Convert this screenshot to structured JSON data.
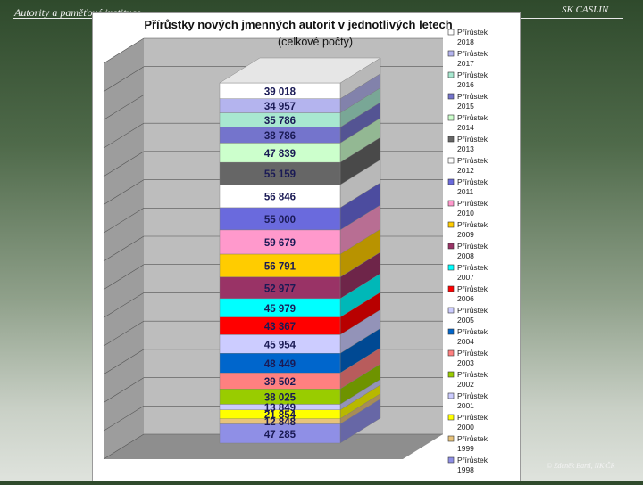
{
  "slide": {
    "header_left": "Autority a paměťové instituce",
    "header_right": "SK CASLIN",
    "footer_credit": "© Zdeněk Bartl, NK ČR"
  },
  "colors": {
    "wall": "#bdbdbd",
    "floor": "#8e8e8e"
  },
  "chart_data": {
    "type": "bar",
    "subtype": "stacked-3d-column",
    "title": "Přírůstky nových jmenných autorit v jednotlivých letech",
    "subtitle": "(celkové počty)",
    "series": [
      {
        "name": "Přírůstek 1998",
        "year": "1998",
        "value": 47285,
        "label": "47 285",
        "color": "#8f8fe6"
      },
      {
        "name": "Přírůstek 1999",
        "year": "1999",
        "value": 12848,
        "label": "12 848",
        "color": "#e8c37a"
      },
      {
        "name": "Přírůstek 2000",
        "year": "2000",
        "value": 21854,
        "label": "21 854",
        "color": "#ffff00"
      },
      {
        "name": "Přírůstek 2001",
        "year": "2001",
        "value": 13849,
        "label": "13 849",
        "color": "#ccccff"
      },
      {
        "name": "Přírůstek 2002",
        "year": "2002",
        "value": 38025,
        "label": "38 025",
        "color": "#99cc00"
      },
      {
        "name": "Přírůstek 2003",
        "year": "2003",
        "value": 39502,
        "label": "39 502",
        "color": "#ff8080"
      },
      {
        "name": "Přírůstek 2004",
        "year": "2004",
        "value": 48449,
        "label": "48 449",
        "color": "#0066cc"
      },
      {
        "name": "Přírůstek 2005",
        "year": "2005",
        "value": 45954,
        "label": "45 954",
        "color": "#ccccff"
      },
      {
        "name": "Přírůstek 2006",
        "year": "2006",
        "value": 43367,
        "label": "43 367",
        "color": "#ff0000"
      },
      {
        "name": "Přírůstek 2007",
        "year": "2007",
        "value": 45979,
        "label": "45 979",
        "color": "#00ffff"
      },
      {
        "name": "Přírůstek 2008",
        "year": "2008",
        "value": 52977,
        "label": "52 977",
        "color": "#993366"
      },
      {
        "name": "Přírůstek 2009",
        "year": "2009",
        "value": 56791,
        "label": "56 791",
        "color": "#ffcc00"
      },
      {
        "name": "Přírůstek 2010",
        "year": "2010",
        "value": 59679,
        "label": "59 679",
        "color": "#ff99cc"
      },
      {
        "name": "Přírůstek 2011",
        "year": "2011",
        "value": 55000,
        "label": "55 000",
        "color": "#6a6add"
      },
      {
        "name": "Přírůstek 2012",
        "year": "2012",
        "value": 56846,
        "label": "56 846",
        "color": "#ffffff"
      },
      {
        "name": "Přírůstek 2013",
        "year": "2013",
        "value": 55159,
        "label": "55 159",
        "color": "#666666"
      },
      {
        "name": "Přírůstek 2014",
        "year": "2014",
        "value": 47839,
        "label": "47 839",
        "color": "#ccffcc"
      },
      {
        "name": "Přírůstek 2015",
        "year": "2015",
        "value": 38786,
        "label": "38 786",
        "color": "#7474cc"
      },
      {
        "name": "Přírůstek 2016",
        "year": "2016",
        "value": 35786,
        "label": "35 786",
        "color": "#a8e8d0"
      },
      {
        "name": "Přírůstek 2017",
        "year": "2017",
        "value": 34957,
        "label": "34 957",
        "color": "#b4b4ee"
      },
      {
        "name": "Přírůstek 2018",
        "year": "2018",
        "value": 39018,
        "label": "39 018",
        "color": "#ffffff"
      }
    ],
    "legend": {
      "position": "right",
      "order": "newest-first"
    },
    "grid": true,
    "xlabel": "",
    "ylabel": ""
  }
}
